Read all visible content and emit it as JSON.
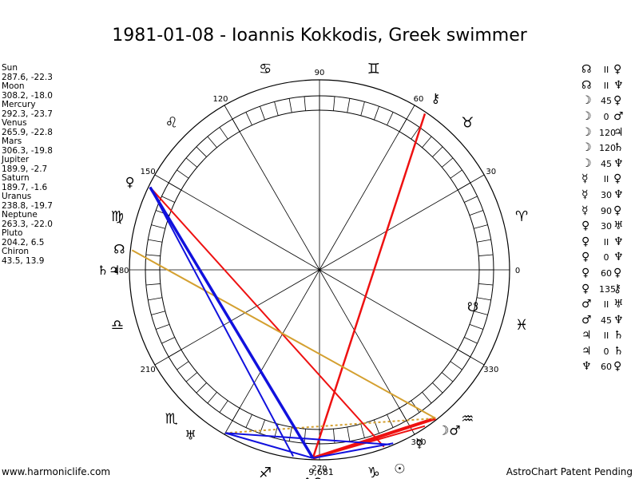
{
  "title": "1981-01-08 - Ioannis Kokkodis, Greek swimmer",
  "positions": [
    {
      "name": "Sun",
      "value": "287.6, -22.3"
    },
    {
      "name": "Moon",
      "value": "308.2, -18.0"
    },
    {
      "name": "Mercury",
      "value": "292.3, -23.7"
    },
    {
      "name": "Venus",
      "value": "265.9, -22.8"
    },
    {
      "name": "Mars",
      "value": "306.3, -19.8"
    },
    {
      "name": "Jupiter",
      "value": "189.9, -2.7"
    },
    {
      "name": "Saturn",
      "value": "189.7, -1.6"
    },
    {
      "name": "Uranus",
      "value": "238.8, -19.7"
    },
    {
      "name": "Neptune",
      "value": "263.3, -22.0"
    },
    {
      "name": "Pluto",
      "value": "204.2, 6.5"
    },
    {
      "name": "Chiron",
      "value": "43.5, 13.9"
    }
  ],
  "aspects": [
    {
      "p1": "☊",
      "v": "II",
      "p2": "♀"
    },
    {
      "p1": "☊",
      "v": "II",
      "p2": "♆"
    },
    {
      "p1": "☽",
      "v": "45",
      "p2": "♀"
    },
    {
      "p1": "☽",
      "v": "0",
      "p2": "♂"
    },
    {
      "p1": "☽",
      "v": "120",
      "p2": "♃"
    },
    {
      "p1": "☽",
      "v": "120",
      "p2": "♄"
    },
    {
      "p1": "☽",
      "v": "45",
      "p2": "♆"
    },
    {
      "p1": "☿",
      "v": "II",
      "p2": "♀"
    },
    {
      "p1": "☿",
      "v": "30",
      "p2": "♆"
    },
    {
      "p1": "☿",
      "v": "90",
      "p2": "♀"
    },
    {
      "p1": "♀",
      "v": "30",
      "p2": "♅"
    },
    {
      "p1": "♀",
      "v": "II",
      "p2": "♆"
    },
    {
      "p1": "♀",
      "v": "0",
      "p2": "♆"
    },
    {
      "p1": "♀",
      "v": "60",
      "p2": "♀"
    },
    {
      "p1": "♀",
      "v": "135",
      "p2": "⚷"
    },
    {
      "p1": "♂",
      "v": "II",
      "p2": "♅"
    },
    {
      "p1": "♂",
      "v": "45",
      "p2": "♆"
    },
    {
      "p1": "♃",
      "v": "II",
      "p2": "♄"
    },
    {
      "p1": "♃",
      "v": "0",
      "p2": "♄"
    },
    {
      "p1": "♆",
      "v": "60",
      "p2": "♀"
    }
  ],
  "wheel": {
    "degree_labels": [
      "90",
      "60",
      "30",
      "0",
      "330",
      "300",
      "270",
      "210",
      "180",
      "150",
      "120"
    ],
    "extra_label": "9,681",
    "zodiac": [
      {
        "name": "aries",
        "glyph": "♈"
      },
      {
        "name": "taurus",
        "glyph": "♉"
      },
      {
        "name": "gemini",
        "glyph": "♊"
      },
      {
        "name": "cancer",
        "glyph": "♋"
      },
      {
        "name": "leo",
        "glyph": "♌"
      },
      {
        "name": "virgo",
        "glyph": "♍"
      },
      {
        "name": "libra",
        "glyph": "♎"
      },
      {
        "name": "scorpio",
        "glyph": "♏"
      },
      {
        "name": "sagittarius",
        "glyph": "♐"
      },
      {
        "name": "capricorn",
        "glyph": "♑"
      },
      {
        "name": "aquarius",
        "glyph": "♒"
      },
      {
        "name": "pisces",
        "glyph": "♓"
      }
    ],
    "planets": [
      {
        "name": "chiron",
        "glyph": "⚷"
      },
      {
        "name": "saturn-jupiter",
        "glyph": "♄♃"
      },
      {
        "name": "north-node",
        "glyph": "☊"
      },
      {
        "name": "pluto",
        "glyph": "♀"
      },
      {
        "name": "uranus",
        "glyph": "♅"
      },
      {
        "name": "neptune-venus",
        "glyph": "♆♀"
      },
      {
        "name": "moon-mars",
        "glyph": "☽♂"
      },
      {
        "name": "sun",
        "glyph": "☉"
      },
      {
        "name": "mercury",
        "glyph": "☿"
      },
      {
        "name": "south-node",
        "glyph": "☋"
      }
    ],
    "colors": {
      "red": "#ee1111",
      "blue": "#1111dd",
      "gold": "#d4a030",
      "ring": "#000000"
    }
  },
  "footer": {
    "left": "www.harmoniclife.com",
    "right": "AstroChart Patent Pending"
  }
}
